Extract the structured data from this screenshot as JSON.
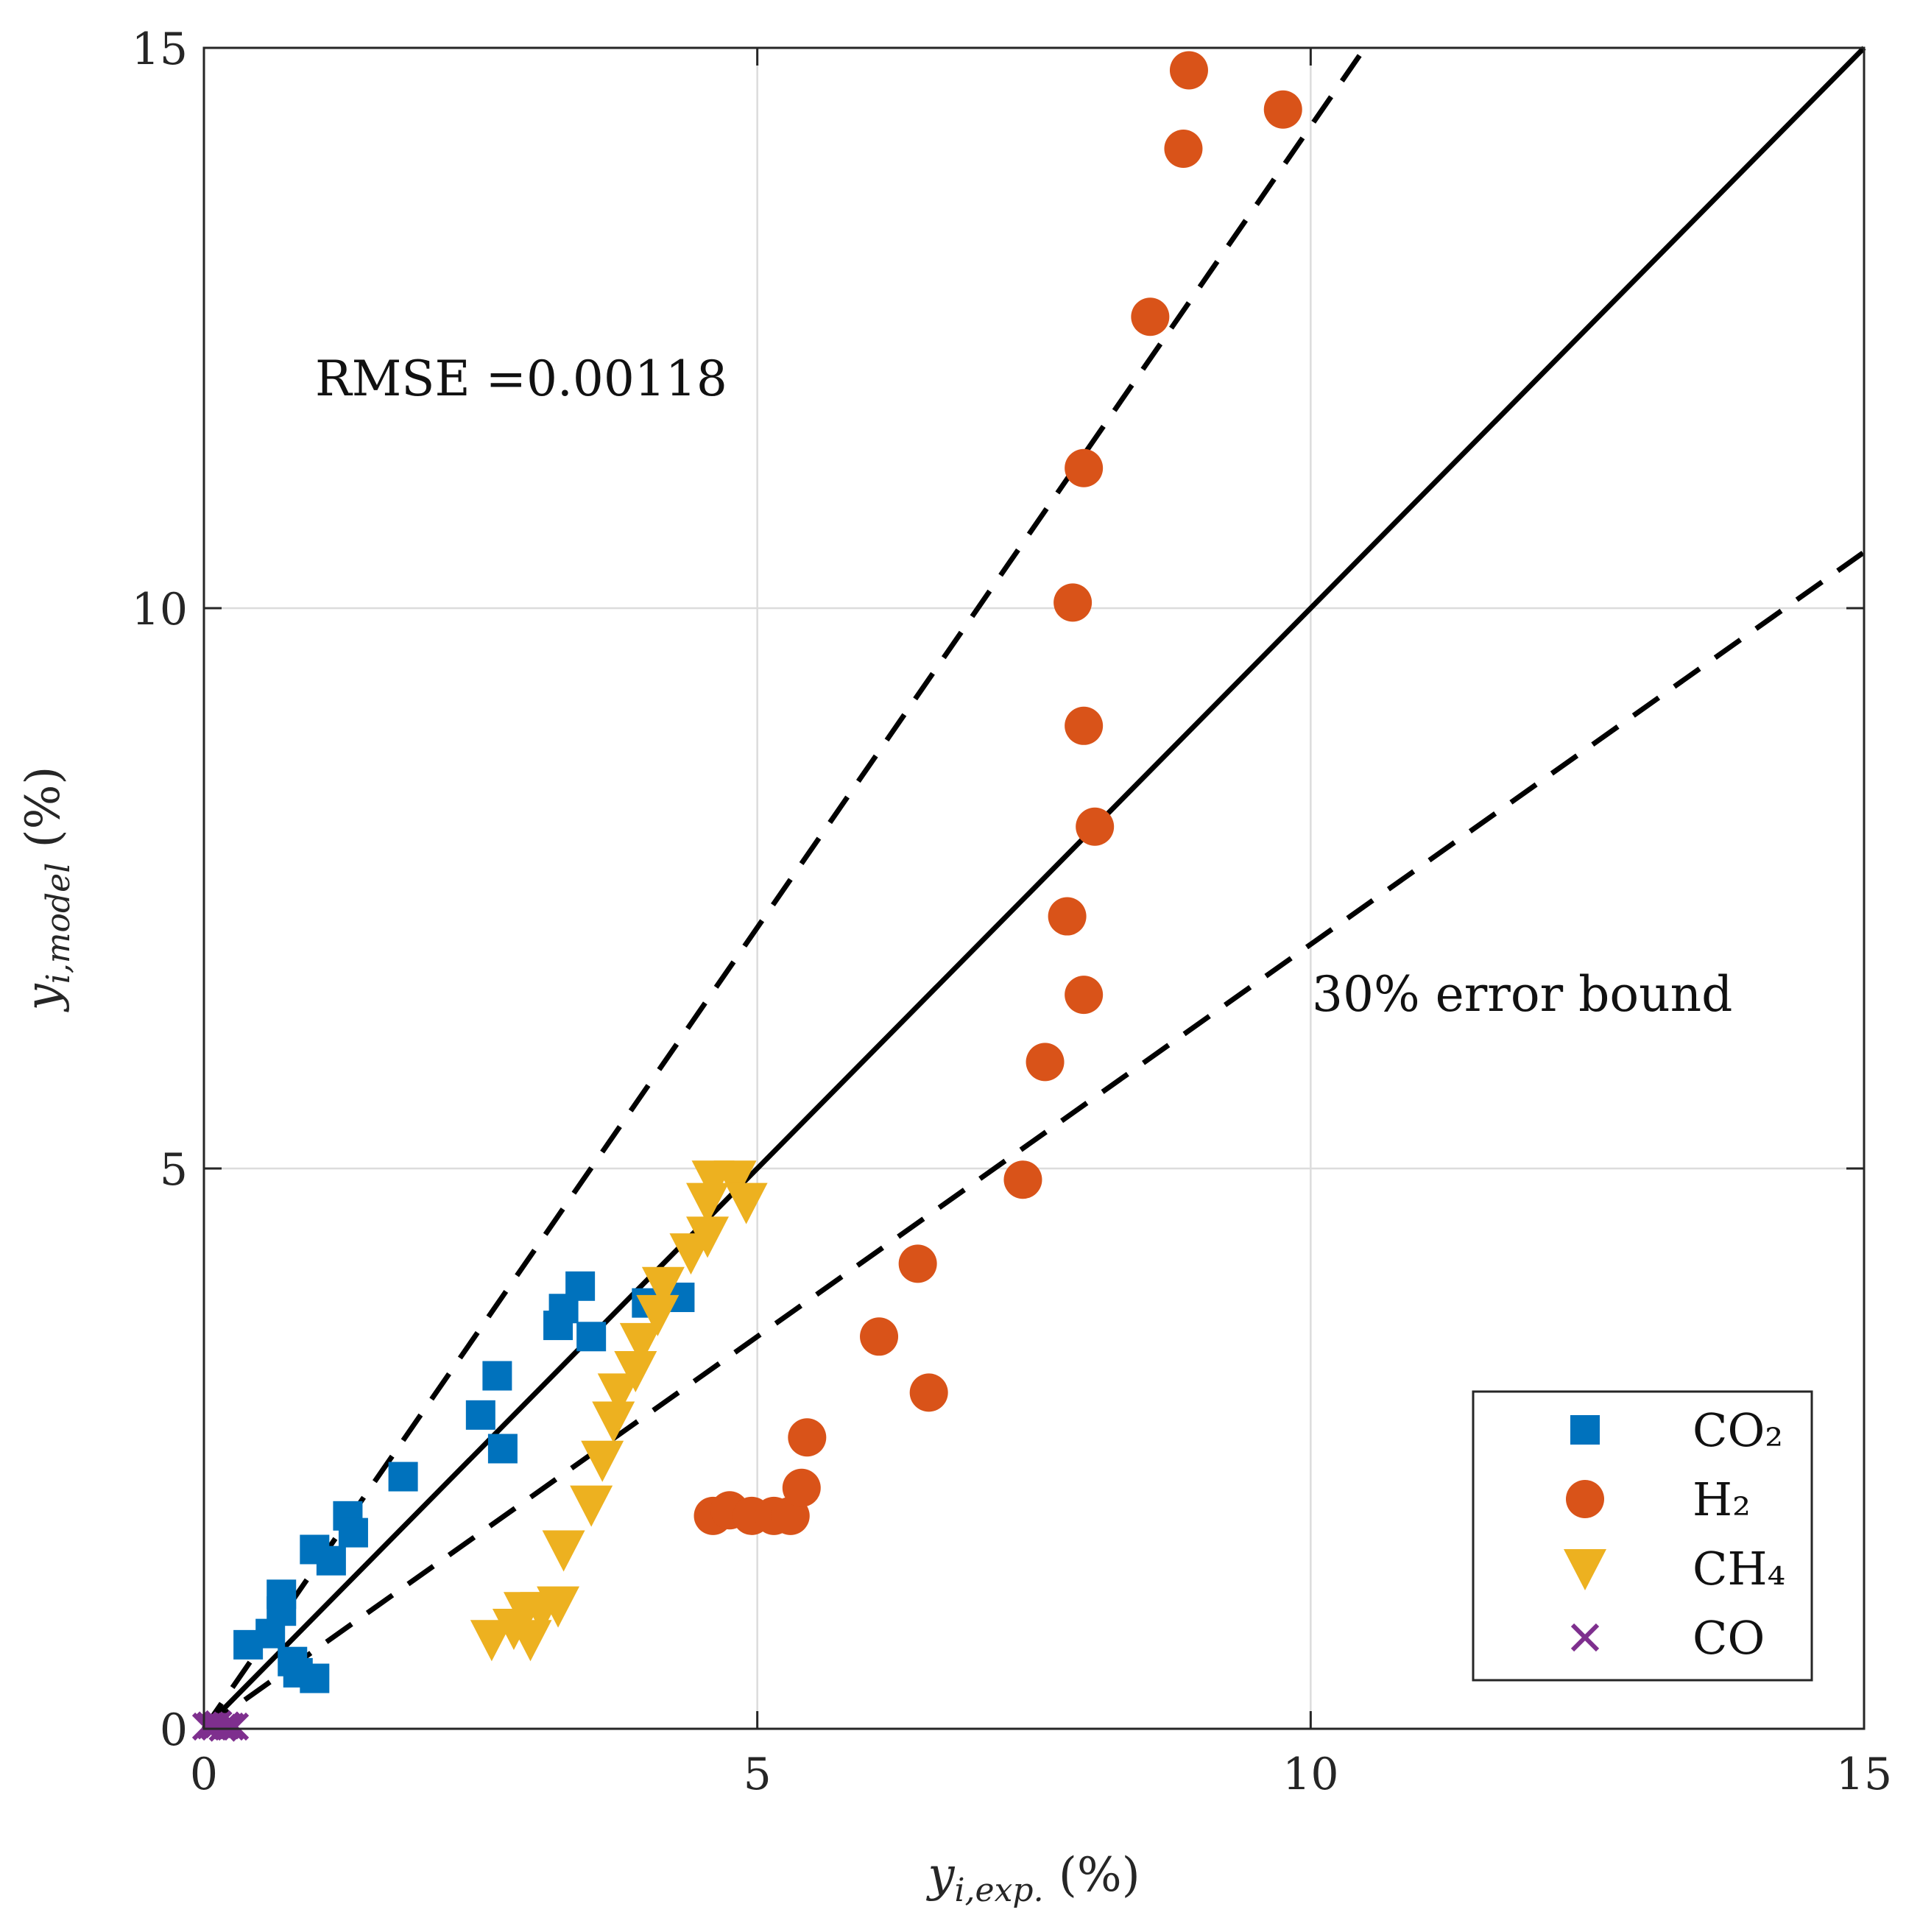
{
  "chart_data": {
    "type": "scatter",
    "xlim": [
      0,
      15
    ],
    "ylim": [
      0,
      15
    ],
    "xticks": [
      0,
      5,
      10,
      15
    ],
    "yticks": [
      0,
      5,
      10,
      15
    ],
    "x_tick_labels": [
      "0",
      "5",
      "10",
      "15"
    ],
    "y_tick_labels": [
      "0",
      "5",
      "10",
      "15"
    ],
    "xlabel": "y_{i,exp.} (%)",
    "ylabel": "y_{i,model} (%)",
    "grid": true,
    "legend_position": "bottom-right",
    "annotations": {
      "rmse": "RMSE =0.00118",
      "bound": "30% error bound"
    },
    "lines": [
      {
        "style": "solid",
        "slope": 1.0
      },
      {
        "style": "dashed",
        "slope": 1.43
      },
      {
        "style": "dashed",
        "slope": 0.7
      }
    ],
    "series": [
      {
        "name": "CO₂",
        "marker": "square",
        "color": "#0072BD",
        "points": [
          [
            0.4,
            0.75
          ],
          [
            0.6,
            0.85
          ],
          [
            0.7,
            1.2
          ],
          [
            0.7,
            1.05
          ],
          [
            0.8,
            0.6
          ],
          [
            0.85,
            0.5
          ],
          [
            1.0,
            0.45
          ],
          [
            1.0,
            1.6
          ],
          [
            1.15,
            1.5
          ],
          [
            1.3,
            1.9
          ],
          [
            1.35,
            1.75
          ],
          [
            1.8,
            2.25
          ],
          [
            2.5,
            2.8
          ],
          [
            2.65,
            3.15
          ],
          [
            2.7,
            2.5
          ],
          [
            3.2,
            3.6
          ],
          [
            3.25,
            3.75
          ],
          [
            3.4,
            3.95
          ],
          [
            3.5,
            3.5
          ],
          [
            4.0,
            3.8
          ],
          [
            4.3,
            3.85
          ]
        ]
      },
      {
        "name": "H₂",
        "marker": "circle",
        "color": "#D95319",
        "points": [
          [
            4.6,
            1.9
          ],
          [
            4.75,
            1.95
          ],
          [
            4.95,
            1.9
          ],
          [
            5.15,
            1.9
          ],
          [
            5.3,
            1.9
          ],
          [
            5.4,
            2.15
          ],
          [
            5.45,
            2.6
          ],
          [
            6.1,
            3.5
          ],
          [
            6.45,
            4.15
          ],
          [
            6.55,
            3.0
          ],
          [
            7.4,
            4.9
          ],
          [
            7.6,
            5.95
          ],
          [
            7.95,
            6.55
          ],
          [
            7.8,
            7.25
          ],
          [
            8.05,
            8.05
          ],
          [
            7.95,
            8.95
          ],
          [
            7.85,
            10.05
          ],
          [
            7.95,
            11.25
          ],
          [
            8.55,
            12.6
          ],
          [
            8.85,
            14.1
          ],
          [
            8.9,
            14.8
          ],
          [
            9.75,
            14.45
          ]
        ]
      },
      {
        "name": "CH₄",
        "marker": "triangle-down",
        "color": "#EDB120",
        "points": [
          [
            2.6,
            0.8
          ],
          [
            2.8,
            0.9
          ],
          [
            2.9,
            1.05
          ],
          [
            2.95,
            0.8
          ],
          [
            3.05,
            1.05
          ],
          [
            3.2,
            1.1
          ],
          [
            3.25,
            1.6
          ],
          [
            3.5,
            2.0
          ],
          [
            3.6,
            2.4
          ],
          [
            3.7,
            2.75
          ],
          [
            3.75,
            3.0
          ],
          [
            3.9,
            3.2
          ],
          [
            3.95,
            3.45
          ],
          [
            4.1,
            3.7
          ],
          [
            4.15,
            3.95
          ],
          [
            4.4,
            4.25
          ],
          [
            4.55,
            4.4
          ],
          [
            4.55,
            4.7
          ],
          [
            4.6,
            4.9
          ],
          [
            4.8,
            4.9
          ],
          [
            4.9,
            4.7
          ]
        ]
      },
      {
        "name": "CO",
        "marker": "x",
        "color": "#7E2F8E",
        "points": [
          [
            0.02,
            0.02
          ],
          [
            0.06,
            0.03
          ],
          [
            0.1,
            0.02
          ],
          [
            0.13,
            0.04
          ],
          [
            0.17,
            0.01
          ],
          [
            0.2,
            0.03
          ],
          [
            0.24,
            0.02
          ],
          [
            0.28,
            0.02
          ]
        ]
      }
    ]
  }
}
